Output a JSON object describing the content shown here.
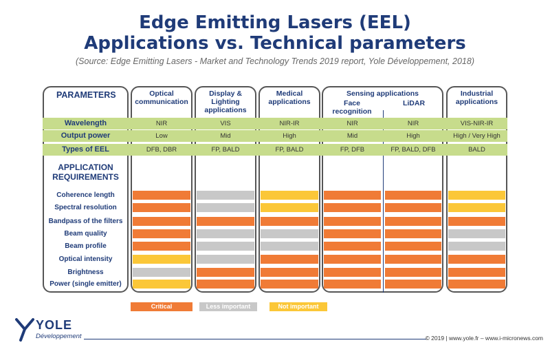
{
  "title_line1": "Edge Emitting Lasers (EEL)",
  "title_line2": "Applications vs. Technical parameters",
  "subtitle": "(Source: Edge Emitting Lasers - Market and Technology Trends 2019 report, Yole Développement, 2018)",
  "parameters_label": "PARAMETERS",
  "columns": [
    {
      "label": "Optical communication"
    },
    {
      "label": "Display & Lighting applications"
    },
    {
      "label": "Medical applications"
    },
    {
      "label": "Face recognition"
    },
    {
      "label": "LiDAR"
    },
    {
      "label": "Industrial applications"
    }
  ],
  "sensing_group_label": "Sensing applications",
  "tech_rows": [
    {
      "label": "Wavelength",
      "values": [
        "NIR",
        "VIS",
        "NIR-IR",
        "NIR",
        "NIR",
        "VIS-NIR-IR"
      ]
    },
    {
      "label": "Output power",
      "values": [
        "Low",
        "Mid",
        "High",
        "Mid",
        "High",
        "High / Very High"
      ]
    },
    {
      "label": "Types of EEL",
      "values": [
        "DFB, DBR",
        "FP, BALD",
        "FP, BALD",
        "FP, DFB",
        "FP, BALD, DFB",
        "BALD"
      ]
    }
  ],
  "requirements_label_1": "APPLICATION",
  "requirements_label_2": "REQUIREMENTS",
  "requirements": [
    {
      "label": "Coherence length",
      "levels": [
        "critical",
        "less",
        "not",
        "critical",
        "critical",
        "not"
      ]
    },
    {
      "label": "Spectral resolution",
      "levels": [
        "critical",
        "less",
        "not",
        "critical",
        "critical",
        "not"
      ]
    },
    {
      "label": "Bandpass of the filters",
      "levels": [
        "critical",
        "critical",
        "critical",
        "critical",
        "critical",
        "critical"
      ]
    },
    {
      "label": "Beam quality",
      "levels": [
        "critical",
        "less",
        "less",
        "critical",
        "critical",
        "less"
      ]
    },
    {
      "label": "Beam profile",
      "levels": [
        "critical",
        "less",
        "less",
        "critical",
        "critical",
        "less"
      ]
    },
    {
      "label": "Optical intensity",
      "levels": [
        "not",
        "less",
        "critical",
        "critical",
        "critical",
        "critical"
      ]
    },
    {
      "label": "Brightness",
      "levels": [
        "less",
        "critical",
        "critical",
        "critical",
        "critical",
        "critical"
      ]
    },
    {
      "label": "Power (single emitter)",
      "levels": [
        "not",
        "critical",
        "critical",
        "critical",
        "critical",
        "critical"
      ]
    }
  ],
  "legend": {
    "critical": "Critical",
    "less": "Less important",
    "not": "Not important"
  },
  "colors": {
    "critical": "#f07b36",
    "less": "#c8c8c8",
    "not": "#fbc738",
    "band": "#c7dc8c",
    "heading": "#1f3b78"
  },
  "logo": {
    "name": "YOLE",
    "sub": "Développement"
  },
  "footer": "© 2019 | www.yole.fr – www.i-micronews.com"
}
